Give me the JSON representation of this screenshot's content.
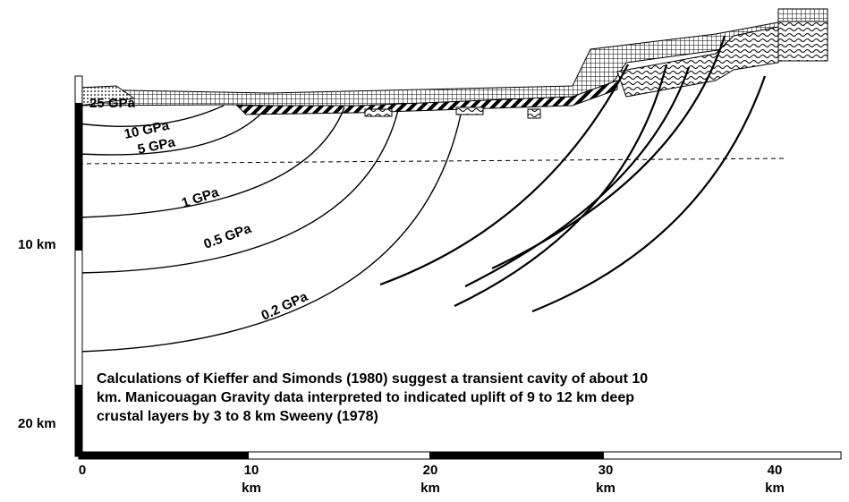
{
  "pressure_labels": [
    "25 GPa",
    "10 GPa",
    "5 GPa",
    "1 GPa",
    "0.5 GPa",
    "0.2 GPa"
  ],
  "depth_axis": {
    "labels": [
      "10 km",
      "20 km"
    ]
  },
  "distance_axis": {
    "ticks": [
      "0",
      "10",
      "20",
      "30",
      "40"
    ],
    "unit": "km"
  },
  "caption": [
    "Calculations of Kieffer and Simonds (1980) suggest a transient cavity of about 10",
    "km.  Manicouagan Gravity data interpreted to indicated uplift of 9 to 12 km deep",
    "crustal layers by 3 to 8 km Sweeny (1978)"
  ]
}
